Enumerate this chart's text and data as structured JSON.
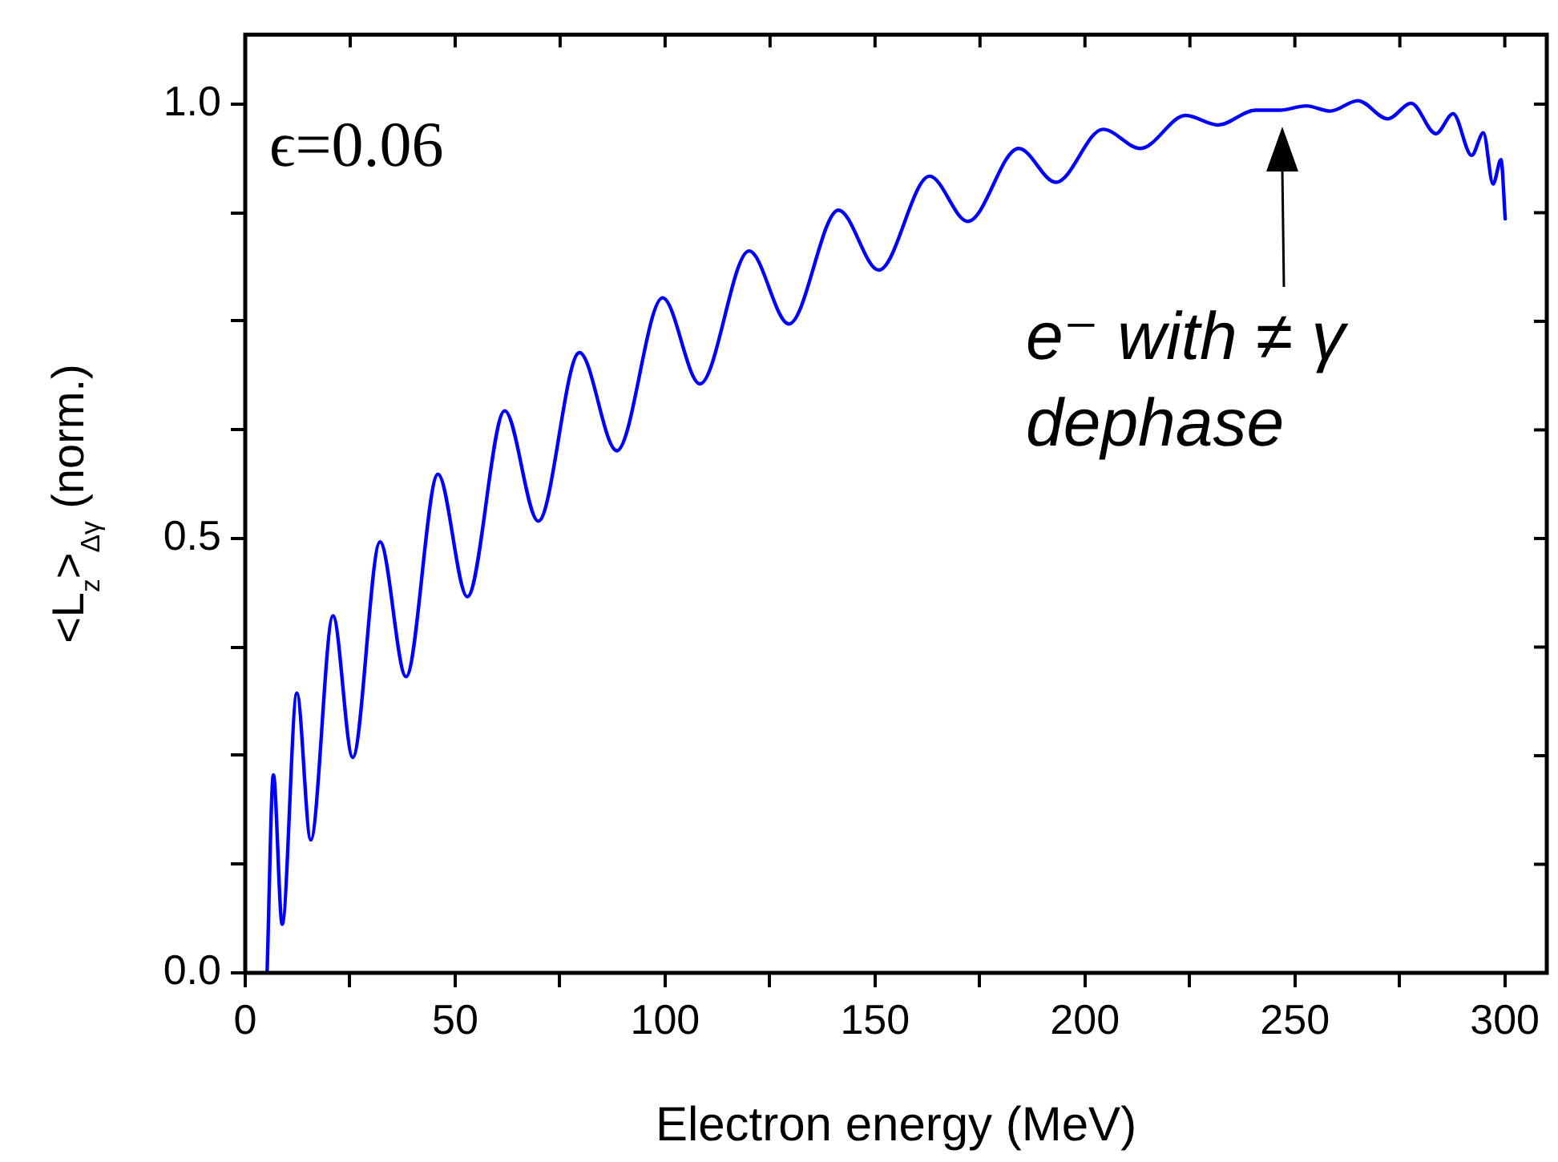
{
  "chart_data": {
    "type": "line",
    "xlabel": "Electron energy (MeV)",
    "ylabel": "<L$_{z}$>$_{Δγ}$ (norm.)",
    "annotations": [
      "ϵ=0.06",
      {
        "text": "e⁻ with ≠ γ\ndephase",
        "x": 247,
        "y": 0.993
      }
    ],
    "xlim": [
      0,
      310
    ],
    "ylim": [
      0,
      1.08
    ],
    "xticks": [
      0,
      {
        "value": 25,
        "label": null
      },
      50,
      {
        "value": 75,
        "label": null
      },
      100,
      {
        "value": 125,
        "label": null
      },
      150,
      {
        "value": 175,
        "label": null
      },
      200,
      {
        "value": 225,
        "label": null
      },
      250,
      {
        "value": 275,
        "label": null
      },
      300
    ],
    "yticks": [
      {
        "value": 0,
        "label": "0.0"
      },
      {
        "value": 0.125,
        "label": null
      },
      {
        "value": 0.25,
        "label": null
      },
      {
        "value": 0.375,
        "label": null
      },
      {
        "value": 0.5,
        "label": "0.5"
      },
      {
        "value": 0.625,
        "label": null
      },
      {
        "value": 0.75,
        "label": null
      },
      {
        "value": 0.875,
        "label": null
      },
      {
        "value": 1,
        "label": "1.0"
      }
    ],
    "grid": false,
    "legend": false,
    "marker": "none",
    "line_style": "solid",
    "series": [
      {
        "color": "#0000ff",
        "x": [
          5.2,
          6.7,
          8.8,
          12.3,
          15.6,
          20.9,
          25.6,
          32.1,
          38.3,
          45.9,
          52.9,
          61.8,
          69.8,
          79.6,
          88.5,
          99.4,
          108.3,
          120,
          129.5,
          141.3,
          150.9,
          163,
          172.1,
          184.2,
          193.1,
          204.3,
          213.2,
          224,
          231.7,
          240.6,
          246.3,
          252.7,
          258.4,
          265,
          272.1,
          277.7,
          283.6,
          287.7,
          292.1,
          294.9,
          297.2,
          299.1,
          300.1
        ],
        "values": [
          0,
          0.228,
          0.056,
          0.322,
          0.153,
          0.411,
          0.248,
          0.496,
          0.341,
          0.574,
          0.433,
          0.647,
          0.52,
          0.714,
          0.601,
          0.777,
          0.678,
          0.831,
          0.747,
          0.878,
          0.809,
          0.917,
          0.865,
          0.949,
          0.91,
          0.971,
          0.949,
          0.987,
          0.976,
          0.993,
          0.993,
          0.998,
          0.992,
          1.004,
          0.983,
          1.001,
          0.966,
          0.989,
          0.941,
          0.967,
          0.908,
          0.936,
          0.868
        ]
      }
    ]
  }
}
